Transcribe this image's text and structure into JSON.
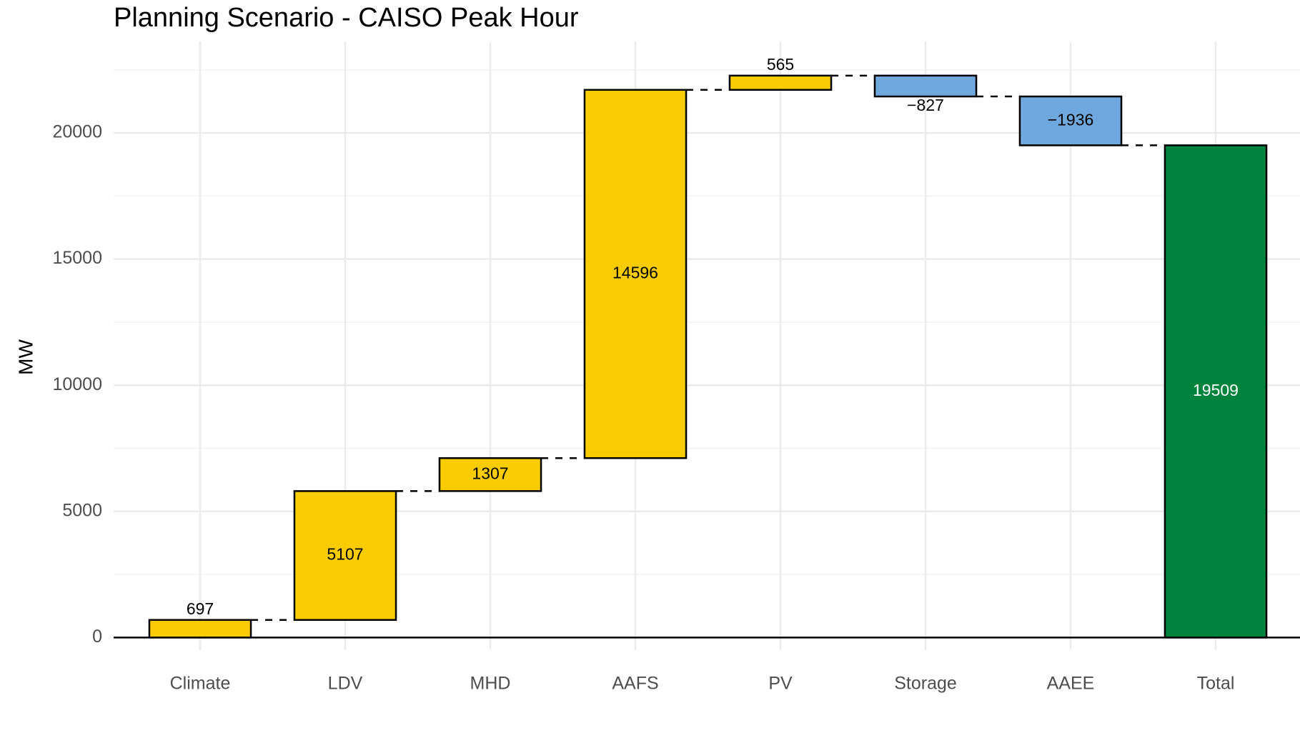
{
  "chart_data": {
    "type": "waterfall",
    "title": "Planning Scenario - CAISO Peak Hour",
    "y_label": "MW",
    "categories": [
      "Climate",
      "LDV",
      "MHD",
      "AAFS",
      "PV",
      "Storage",
      "AAEE",
      "Total"
    ],
    "values": [
      697,
      5107,
      1307,
      14596,
      565,
      -827,
      -1936,
      19509
    ],
    "value_labels": [
      "697",
      "5107",
      "1307",
      "14596",
      "565",
      "−827",
      "−1936",
      "19509"
    ],
    "measure": [
      "relative",
      "relative",
      "relative",
      "relative",
      "relative",
      "relative",
      "relative",
      "total"
    ],
    "colors": {
      "increase": "#f8cc00",
      "decrease": "#6fa8dc",
      "total": "#00843d"
    },
    "ylim": [
      -500,
      23400
    ],
    "yticks": [
      0,
      5000,
      10000,
      15000,
      20000
    ],
    "minor_yticks": [
      2500,
      7500,
      12500,
      17500,
      22500
    ],
    "grid": true
  }
}
